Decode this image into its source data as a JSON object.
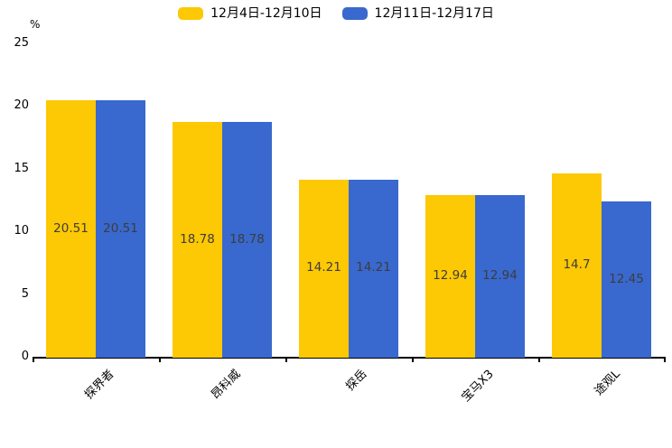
{
  "chart_data": {
    "type": "bar",
    "title": "",
    "categories": [
      "探界者",
      "昂科威",
      "探岳",
      "宝马X3",
      "途观L"
    ],
    "series": [
      {
        "name": "12月4日-12月10日",
        "color": "#FDC804",
        "values": [
          20.51,
          18.78,
          14.21,
          12.94,
          14.7
        ],
        "value_labels": [
          "20.51",
          "18.78",
          "14.21",
          "12.94",
          "14.7"
        ]
      },
      {
        "name": "12月11日-12月17日",
        "color": "#3968CE",
        "values": [
          20.51,
          18.78,
          14.21,
          12.94,
          12.45
        ],
        "value_labels": [
          "20.51",
          "18.78",
          "14.21",
          "12.94",
          "12.45"
        ]
      }
    ],
    "xlabel": "",
    "ylabel": "%",
    "yticks": [
      0,
      5,
      10,
      15,
      20,
      25
    ],
    "ylim": [
      0,
      25
    ],
    "grid": false,
    "legend_position": "top",
    "bar_value_labels_shown": true,
    "value_label_color": "#3d3d3d",
    "axis_color": "#000000"
  }
}
